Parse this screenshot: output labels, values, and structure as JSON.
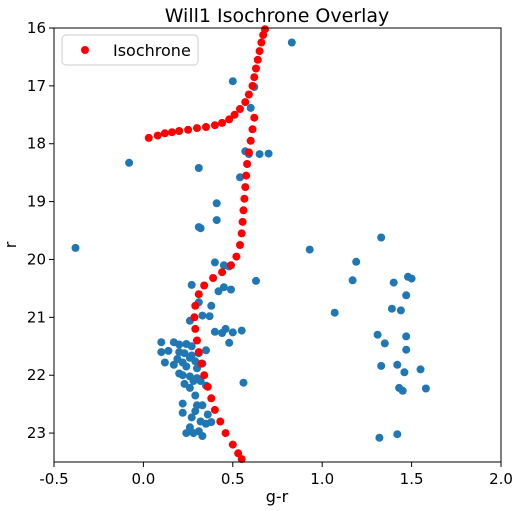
{
  "chart_data": {
    "type": "scatter",
    "title": "Will1 Isochrone Overlay",
    "xlabel": "g-r",
    "ylabel": "r",
    "xlim": [
      -0.5,
      2.0
    ],
    "ylim": [
      23.5,
      16
    ],
    "y_inverted": true,
    "xticks": [
      "-0.5",
      "0.0",
      "0.5",
      "1.0",
      "1.5",
      "2.0"
    ],
    "yticks": [
      "16",
      "17",
      "18",
      "19",
      "20",
      "21",
      "22",
      "23"
    ],
    "grid": false,
    "legend": {
      "placement": "top-left",
      "entries": [
        "Isochrone"
      ]
    },
    "series": [
      {
        "name": "Isochrone",
        "color": "#ff0000",
        "marker": "circle",
        "points": [
          [
            0.03,
            17.9
          ],
          [
            0.08,
            17.86
          ],
          [
            0.12,
            17.82
          ],
          [
            0.16,
            17.8
          ],
          [
            0.2,
            17.78
          ],
          [
            0.25,
            17.76
          ],
          [
            0.3,
            17.73
          ],
          [
            0.35,
            17.71
          ],
          [
            0.4,
            17.68
          ],
          [
            0.44,
            17.64
          ],
          [
            0.48,
            17.58
          ],
          [
            0.51,
            17.5
          ],
          [
            0.54,
            17.4
          ],
          [
            0.57,
            17.28
          ],
          [
            0.59,
            17.15
          ],
          [
            0.61,
            17.0
          ],
          [
            0.62,
            16.85
          ],
          [
            0.63,
            16.7
          ],
          [
            0.64,
            16.55
          ],
          [
            0.65,
            16.4
          ],
          [
            0.66,
            16.25
          ],
          [
            0.67,
            16.12
          ],
          [
            0.68,
            16.02
          ],
          [
            0.62,
            17.55
          ],
          [
            0.61,
            17.75
          ],
          [
            0.6,
            17.95
          ],
          [
            0.59,
            18.15
          ],
          [
            0.58,
            18.35
          ],
          [
            0.575,
            18.55
          ],
          [
            0.57,
            18.75
          ],
          [
            0.565,
            18.95
          ],
          [
            0.56,
            19.15
          ],
          [
            0.555,
            19.35
          ],
          [
            0.55,
            19.55
          ],
          [
            0.54,
            19.75
          ],
          [
            0.52,
            19.95
          ],
          [
            0.49,
            20.1
          ],
          [
            0.44,
            20.22
          ],
          [
            0.39,
            20.32
          ],
          [
            0.34,
            20.45
          ],
          [
            0.31,
            20.6
          ],
          [
            0.29,
            20.8
          ],
          [
            0.285,
            21.0
          ],
          [
            0.29,
            21.2
          ],
          [
            0.3,
            21.4
          ],
          [
            0.31,
            21.6
          ],
          [
            0.325,
            21.8
          ],
          [
            0.34,
            22.0
          ],
          [
            0.36,
            22.2
          ],
          [
            0.38,
            22.4
          ],
          [
            0.4,
            22.6
          ],
          [
            0.43,
            22.8
          ],
          [
            0.46,
            23.0
          ],
          [
            0.5,
            23.2
          ],
          [
            0.53,
            23.35
          ],
          [
            0.55,
            23.45
          ]
        ]
      },
      {
        "name": "",
        "color": "#1f77b4",
        "marker": "circle",
        "points": [
          [
            0.83,
            16.25
          ],
          [
            0.5,
            16.92
          ],
          [
            0.62,
            17.02
          ],
          [
            0.6,
            17.38
          ],
          [
            0.57,
            18.13
          ],
          [
            0.65,
            18.18
          ],
          [
            0.59,
            18.18
          ],
          [
            0.7,
            18.17
          ],
          [
            -0.08,
            18.33
          ],
          [
            0.31,
            18.42
          ],
          [
            0.54,
            18.58
          ],
          [
            0.41,
            19.03
          ],
          [
            0.41,
            19.32
          ],
          [
            0.31,
            19.44
          ],
          [
            0.32,
            19.46
          ],
          [
            -0.38,
            19.8
          ],
          [
            0.93,
            19.83
          ],
          [
            1.33,
            19.62
          ],
          [
            1.19,
            20.04
          ],
          [
            0.4,
            20.05
          ],
          [
            0.45,
            20.1
          ],
          [
            0.48,
            20.12
          ],
          [
            1.17,
            20.36
          ],
          [
            1.48,
            20.3
          ],
          [
            1.5,
            20.33
          ],
          [
            0.63,
            20.37
          ],
          [
            0.27,
            20.44
          ],
          [
            0.45,
            20.48
          ],
          [
            0.49,
            20.52
          ],
          [
            0.42,
            20.55
          ],
          [
            1.4,
            20.4
          ],
          [
            1.47,
            20.62
          ],
          [
            0.31,
            20.74
          ],
          [
            0.38,
            20.8
          ],
          [
            1.39,
            20.85
          ],
          [
            1.44,
            20.88
          ],
          [
            1.07,
            20.92
          ],
          [
            0.26,
            21.06
          ],
          [
            0.33,
            20.97
          ],
          [
            0.37,
            20.98
          ],
          [
            0.4,
            21.25
          ],
          [
            0.46,
            21.2
          ],
          [
            0.5,
            21.26
          ],
          [
            0.55,
            21.23
          ],
          [
            0.44,
            21.27
          ],
          [
            0.48,
            21.44
          ],
          [
            1.31,
            21.3
          ],
          [
            1.35,
            21.45
          ],
          [
            1.47,
            21.33
          ],
          [
            1.47,
            21.56
          ],
          [
            0.1,
            21.43
          ],
          [
            0.17,
            21.43
          ],
          [
            0.2,
            21.47
          ],
          [
            0.24,
            21.46
          ],
          [
            0.27,
            21.5
          ],
          [
            0.1,
            21.6
          ],
          [
            0.14,
            21.58
          ],
          [
            0.2,
            21.6
          ],
          [
            0.23,
            21.62
          ],
          [
            0.27,
            21.66
          ],
          [
            0.31,
            21.62
          ],
          [
            0.35,
            21.57
          ],
          [
            0.12,
            21.78
          ],
          [
            0.17,
            21.82
          ],
          [
            0.19,
            21.72
          ],
          [
            0.22,
            21.78
          ],
          [
            0.26,
            21.7
          ],
          [
            0.29,
            21.76
          ],
          [
            0.33,
            21.8
          ],
          [
            0.24,
            21.85
          ],
          [
            0.3,
            21.88
          ],
          [
            1.33,
            21.84
          ],
          [
            1.42,
            21.82
          ],
          [
            1.46,
            21.95
          ],
          [
            1.55,
            21.9
          ],
          [
            0.2,
            21.97
          ],
          [
            0.22,
            22.0
          ],
          [
            0.26,
            22.02
          ],
          [
            0.28,
            22.1
          ],
          [
            0.3,
            22.05
          ],
          [
            0.23,
            22.15
          ],
          [
            0.32,
            22.1
          ],
          [
            0.35,
            22.18
          ],
          [
            0.56,
            22.13
          ],
          [
            1.43,
            22.22
          ],
          [
            1.45,
            22.27
          ],
          [
            1.58,
            22.23
          ],
          [
            0.26,
            22.22
          ],
          [
            0.29,
            22.35
          ],
          [
            0.22,
            22.49
          ],
          [
            0.3,
            22.52
          ],
          [
            0.33,
            22.52
          ],
          [
            0.22,
            22.65
          ],
          [
            0.29,
            22.62
          ],
          [
            0.36,
            22.68
          ],
          [
            0.27,
            22.73
          ],
          [
            0.32,
            22.8
          ],
          [
            0.35,
            22.84
          ],
          [
            0.38,
            22.81
          ],
          [
            0.26,
            22.9
          ],
          [
            0.31,
            22.97
          ],
          [
            0.24,
            23.0
          ],
          [
            0.28,
            23.0
          ],
          [
            0.33,
            23.05
          ],
          [
            1.42,
            23.02
          ],
          [
            1.32,
            23.08
          ]
        ]
      }
    ]
  }
}
